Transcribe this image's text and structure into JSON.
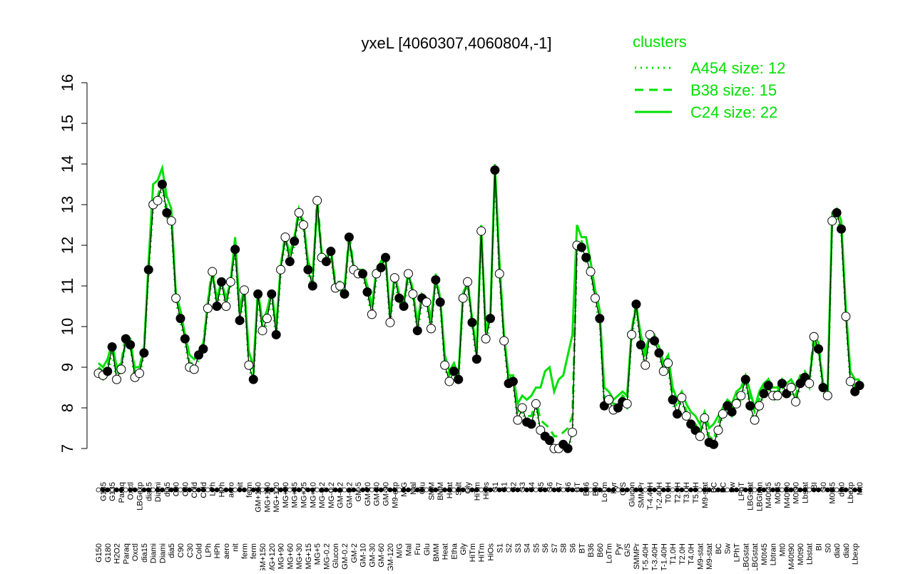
{
  "chart_data": {
    "type": "line",
    "title": "yxeL [4060307,4060804,-1]",
    "legend_title": "clusters",
    "ylim": [
      7,
      16
    ],
    "yticks": [
      7,
      8,
      9,
      10,
      11,
      12,
      13,
      14,
      15,
      16
    ],
    "categories": [
      "G150",
      "G135",
      "G180",
      "G135",
      "H2O2",
      "Paraq",
      "Paraq",
      "Oxctl",
      "Oxctl",
      "LBGexp",
      "dia15",
      "dia15",
      "Diami",
      "Diami",
      "Diami",
      "dia5",
      "dia5",
      "C90",
      "C90",
      "C30",
      "C30",
      "Cold",
      "Cold",
      "Cold",
      "LPh",
      "LPh",
      "HPh",
      "HPh",
      "aero",
      "aero",
      "nit",
      "nit",
      "ferm",
      "ferm",
      "ferm",
      "GM+150",
      "GM+150",
      "MG+150",
      "MG+120",
      "MG+120",
      "MG+90",
      "MG+90",
      "MG+60",
      "MG+45",
      "MG+30",
      "MG+25",
      "MG+15",
      "MG+10",
      "MG+5",
      "MG-0.2",
      "MG-0.2",
      "MG-0.2",
      "Glucon",
      "GM-0.2",
      "GM-0.2",
      "GM-0.2",
      "GM-2",
      "GM-5",
      "GM-10",
      "GM-20",
      "GM-30",
      "GM-40",
      "GM-60",
      "GM-90",
      "GM-120",
      "M9-exp",
      "M/G",
      "M/G",
      "Mal",
      "Mal",
      "Fru",
      "Glu",
      "Glu",
      "SMM",
      "BMM",
      "BMM",
      "Heat",
      "Heat",
      "Etha",
      "Salt",
      "Gly",
      "Gly",
      "HiTm",
      "HiTm",
      "HiTm",
      "HiOs",
      "HiOs",
      "S1",
      "S1",
      "S1",
      "S2",
      "S2",
      "S3",
      "S3",
      "S4",
      "S4",
      "S5",
      "S5",
      "S6",
      "S6",
      "S7",
      "S7",
      "S8",
      "S6",
      "S6",
      "BT",
      "BT",
      "B36",
      "B36",
      "B60",
      "B60",
      "LoTm",
      "LoTm",
      "Pyr",
      "Pyr",
      "G/S",
      "G/S",
      "Glucon",
      "SMMPr",
      "SMMPr",
      "T-5.40H",
      "T-4.40H",
      "T-3.40H",
      "T-2.40H",
      "T-1.40H",
      "T0.0H",
      "T1.0H",
      "T2.0H",
      "T2.0H",
      "T3.0H",
      "T4.0H",
      "T5.0H",
      "M9-stat",
      "M9-stat",
      "M9-stat",
      "BC",
      "BC",
      "BC",
      "Sw",
      "Sw",
      "LPhT",
      "LPhT",
      "LBGstat",
      "LBGstat",
      "LBGstat",
      "LBGtran",
      "M0t45",
      "M40t45",
      "Lbtran",
      "M0t45",
      "Mt0",
      "M40t90",
      "M40t90",
      "M0t90",
      "M0t90",
      "Lbstat",
      "Lbstat",
      "BI",
      "BI",
      "S0",
      "S0",
      "M0t45",
      "dia0",
      "dia0",
      "dia0",
      "Lbexp",
      "Lbexp",
      "Mt0"
    ],
    "series": [
      {
        "color": "#000000",
        "style": "points",
        "values": [
          8.85,
          8.8,
          8.9,
          9.5,
          8.7,
          8.95,
          9.7,
          9.55,
          8.75,
          8.85,
          9.35,
          11.4,
          13.0,
          13.1,
          13.5,
          12.8,
          12.6,
          10.7,
          10.2,
          9.7,
          9.0,
          8.95,
          9.3,
          9.45,
          10.45,
          11.35,
          10.5,
          11.1,
          10.5,
          11.1,
          11.9,
          10.15,
          10.9,
          9.05,
          8.7,
          10.8,
          9.9,
          10.2,
          10.8,
          9.8,
          11.4,
          12.2,
          11.6,
          12.1,
          12.8,
          12.5,
          11.4,
          11.0,
          13.1,
          11.7,
          11.6,
          11.85,
          10.95,
          11.0,
          10.8,
          12.2,
          11.4,
          11.3,
          11.3,
          10.85,
          10.3,
          11.3,
          11.45,
          11.7,
          10.1,
          11.2,
          10.7,
          10.5,
          11.3,
          10.8,
          9.9,
          10.7,
          10.6,
          9.95,
          11.15,
          10.6,
          9.05,
          8.65,
          8.9,
          8.7,
          10.7,
          11.1,
          10.1,
          9.2,
          12.35,
          9.7,
          10.2,
          13.85,
          11.3,
          9.65,
          8.6,
          8.65,
          7.7,
          8.0,
          7.65,
          7.6,
          8.1,
          7.45,
          7.3,
          7.2,
          7.0,
          7.0,
          7.1,
          7.0,
          7.4,
          12.0,
          11.95,
          11.7,
          11.35,
          10.7,
          10.2,
          8.05,
          8.2,
          7.95,
          8.0,
          8.15,
          8.1,
          9.8,
          10.55,
          9.55,
          9.05,
          9.8,
          9.65,
          9.35,
          8.9,
          9.1,
          8.2,
          7.85,
          8.25,
          7.8,
          7.6,
          7.45,
          7.3,
          7.75,
          7.15,
          7.1,
          7.45,
          7.85,
          8.05,
          7.9,
          8.1,
          8.3,
          8.7,
          8.05,
          7.7,
          8.05,
          8.35,
          8.55,
          8.3,
          8.3,
          8.6,
          8.35,
          8.5,
          8.15,
          8.6,
          8.75,
          8.6,
          9.75,
          9.45,
          8.5,
          8.3,
          12.6,
          12.8,
          12.4,
          10.25,
          8.65,
          8.4,
          8.55
        ]
      },
      {
        "name": "A454 size: 12",
        "color": "#00e000",
        "style": "dotted",
        "values": [
          8.8,
          8.7,
          8.8,
          9.4,
          8.6,
          8.9,
          9.6,
          9.5,
          8.7,
          8.8,
          9.3,
          11.3,
          12.9,
          13.0,
          13.4,
          12.7,
          12.5,
          10.6,
          10.1,
          9.6,
          8.9,
          8.9,
          9.2,
          9.4,
          10.4,
          11.3,
          10.4,
          11.0,
          10.4,
          11.0,
          11.8,
          10.1,
          10.8,
          9.0,
          8.6,
          10.7,
          9.8,
          10.1,
          10.7,
          9.7,
          11.3,
          12.1,
          11.5,
          12.0,
          12.7,
          12.4,
          11.3,
          10.9,
          13.0,
          11.6,
          11.5,
          11.7,
          10.9,
          10.9,
          10.7,
          12.1,
          11.3,
          11.2,
          11.2,
          10.8,
          10.2,
          11.2,
          11.4,
          11.6,
          10.0,
          11.1,
          10.6,
          10.4,
          11.2,
          10.7,
          9.8,
          10.6,
          10.5,
          9.9,
          11.1,
          10.5,
          9.0,
          8.6,
          8.8,
          8.6,
          10.6,
          11.0,
          10.0,
          9.1,
          12.3,
          9.6,
          10.1,
          13.7,
          11.2,
          9.6,
          8.5,
          8.6,
          7.6,
          7.9,
          7.6,
          7.5,
          8.0,
          7.4,
          7.2,
          7.1,
          7.0,
          7.0,
          7.0,
          7.0,
          7.3,
          11.9,
          11.9,
          11.6,
          11.3,
          10.6,
          10.1,
          8.0,
          8.1,
          7.9,
          7.9,
          8.1,
          8.0,
          9.7,
          10.4,
          9.5,
          9.0,
          9.7,
          9.6,
          9.3,
          8.8,
          9.0,
          8.1,
          7.8,
          8.2,
          7.7,
          7.5,
          7.4,
          7.2,
          7.7,
          7.1,
          7.0,
          7.4,
          7.8,
          8.0,
          7.8,
          8.0,
          8.2,
          8.6,
          8.0,
          7.6,
          8.0,
          8.3,
          8.5,
          8.2,
          8.2,
          8.5,
          8.3,
          8.4,
          8.1,
          8.5,
          8.7,
          8.5,
          9.6,
          9.4,
          8.4,
          8.2,
          12.5,
          12.7,
          12.3,
          10.2,
          8.6,
          8.3,
          8.5
        ]
      },
      {
        "name": "B38 size: 15",
        "color": "#00e000",
        "style": "dashed",
        "values": [
          9.0,
          8.9,
          9.0,
          9.6,
          8.8,
          9.1,
          9.8,
          9.7,
          8.9,
          9.0,
          9.5,
          11.5,
          13.1,
          13.2,
          13.6,
          12.9,
          12.7,
          10.8,
          10.3,
          9.8,
          9.1,
          9.1,
          9.4,
          9.6,
          10.6,
          11.5,
          10.6,
          11.2,
          10.6,
          11.2,
          12.0,
          10.3,
          11.0,
          9.2,
          8.8,
          10.9,
          10.0,
          10.3,
          10.9,
          9.9,
          11.5,
          12.3,
          11.7,
          12.2,
          12.9,
          12.6,
          11.5,
          11.1,
          13.2,
          11.8,
          11.7,
          11.9,
          11.1,
          11.1,
          10.9,
          12.3,
          11.5,
          11.4,
          11.4,
          11.0,
          10.4,
          11.4,
          11.6,
          11.8,
          10.2,
          11.3,
          10.8,
          10.6,
          11.4,
          10.9,
          10.0,
          10.8,
          10.7,
          10.1,
          11.3,
          10.7,
          9.2,
          8.8,
          9.0,
          8.8,
          10.8,
          11.2,
          10.2,
          9.3,
          12.5,
          9.8,
          10.3,
          13.9,
          11.4,
          9.8,
          8.7,
          8.8,
          7.9,
          8.1,
          7.8,
          7.8,
          8.2,
          7.7,
          7.6,
          7.5,
          7.3,
          7.3,
          7.4,
          7.5,
          7.8,
          12.1,
          12.1,
          11.8,
          11.5,
          10.8,
          10.3,
          8.2,
          8.3,
          8.1,
          8.1,
          8.3,
          8.2,
          9.9,
          10.6,
          9.7,
          9.2,
          9.9,
          9.8,
          9.5,
          9.0,
          9.2,
          8.3,
          8.0,
          8.4,
          7.9,
          7.7,
          7.6,
          7.4,
          7.9,
          7.3,
          7.2,
          7.6,
          8.0,
          8.2,
          8.0,
          8.2,
          8.4,
          8.8,
          8.2,
          7.9,
          8.2,
          8.5,
          8.7,
          8.4,
          8.4,
          8.7,
          8.5,
          8.6,
          8.3,
          8.7,
          8.9,
          8.7,
          9.8,
          9.6,
          8.6,
          8.4,
          12.7,
          12.9,
          12.5,
          10.4,
          8.8,
          8.5,
          8.7
        ]
      },
      {
        "name": "C24 size: 22",
        "color": "#00e000",
        "style": "solid",
        "values": [
          9.1,
          9.0,
          9.2,
          9.6,
          9.0,
          9.1,
          9.6,
          9.5,
          9.0,
          9.0,
          9.4,
          11.6,
          13.5,
          13.6,
          13.9,
          13.2,
          12.9,
          10.8,
          10.4,
          9.8,
          9.3,
          9.2,
          9.4,
          9.5,
          10.6,
          11.3,
          10.7,
          11.1,
          10.7,
          11.1,
          12.2,
          10.4,
          11.0,
          9.4,
          9.0,
          10.9,
          10.1,
          10.4,
          10.9,
          10.0,
          11.5,
          12.2,
          11.8,
          12.2,
          12.8,
          12.6,
          11.6,
          11.3,
          12.9,
          11.8,
          11.7,
          11.9,
          11.0,
          11.1,
          11.0,
          12.1,
          11.5,
          11.4,
          11.4,
          11.0,
          10.5,
          11.4,
          11.5,
          11.7,
          10.3,
          11.3,
          10.8,
          10.6,
          11.3,
          10.9,
          10.1,
          10.8,
          10.7,
          10.2,
          11.2,
          10.7,
          9.3,
          8.9,
          9.1,
          8.8,
          10.8,
          11.1,
          10.2,
          9.4,
          12.4,
          9.9,
          10.3,
          14.0,
          11.6,
          9.8,
          8.8,
          8.8,
          8.1,
          8.3,
          8.2,
          8.3,
          8.5,
          8.5,
          8.9,
          9.0,
          8.4,
          8.7,
          8.8,
          9.3,
          9.8,
          12.5,
          12.2,
          12.2,
          11.6,
          10.9,
          10.4,
          8.5,
          8.4,
          8.2,
          8.3,
          8.4,
          8.3,
          9.9,
          10.5,
          9.8,
          9.4,
          9.8,
          9.7,
          9.5,
          9.1,
          9.3,
          8.5,
          8.2,
          8.4,
          8.1,
          7.9,
          7.8,
          7.6,
          7.9,
          7.5,
          7.6,
          7.8,
          8.0,
          8.2,
          8.1,
          8.4,
          8.5,
          8.8,
          8.4,
          8.0,
          8.4,
          8.6,
          8.7,
          8.5,
          8.5,
          8.7,
          8.6,
          8.7,
          8.5,
          8.8,
          8.8,
          8.7,
          9.6,
          9.5,
          8.6,
          8.5,
          12.8,
          12.9,
          12.6,
          10.5,
          8.9,
          8.7,
          8.7
        ]
      }
    ]
  }
}
